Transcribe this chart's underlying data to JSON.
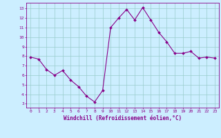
{
  "x": [
    0,
    1,
    2,
    3,
    4,
    5,
    6,
    7,
    8,
    9,
    10,
    11,
    12,
    13,
    14,
    15,
    16,
    17,
    18,
    19,
    20,
    21,
    22,
    23
  ],
  "y": [
    7.9,
    7.7,
    6.6,
    6.0,
    6.5,
    5.5,
    4.8,
    3.8,
    3.2,
    4.4,
    11.0,
    12.0,
    12.9,
    11.8,
    13.1,
    11.8,
    10.5,
    9.5,
    8.3,
    8.3,
    8.5,
    7.8,
    7.9,
    7.8
  ],
  "line_color": "#880088",
  "marker_color": "#880088",
  "bg_color": "#cceeff",
  "grid_color": "#99cccc",
  "xlabel": "Windchill (Refroidissement éolien,°C)",
  "ylabel_ticks": [
    3,
    4,
    5,
    6,
    7,
    8,
    9,
    10,
    11,
    12,
    13
  ],
  "ylim": [
    2.6,
    13.6
  ],
  "xlim": [
    -0.5,
    23.5
  ],
  "tick_color": "#880088",
  "label_color": "#880088",
  "spine_color": "#880088"
}
